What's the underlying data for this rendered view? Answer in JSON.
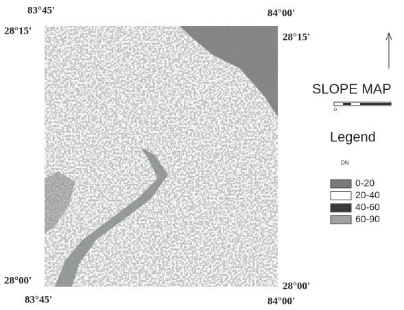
{
  "map": {
    "title": "SLOPE MAP",
    "corner_labels": {
      "top_left_lon": "83°45'",
      "top_left_lat": "28°15'",
      "top_right_lon": "84°00'",
      "top_right_lat": "28°15'",
      "bottom_left_lat": "28°00'",
      "bottom_left_lon": "83°45'",
      "bottom_right_lat": "28°00'",
      "bottom_right_lon": "84°00'"
    },
    "scale_start": "0",
    "legend": {
      "title": "Legend",
      "subtitle": "DN",
      "items": [
        {
          "label": "0-20",
          "color": "#7a7a7a"
        },
        {
          "label": "20-40",
          "color": "#ffffff"
        },
        {
          "label": "40-60",
          "color": "#3a3a3a"
        },
        {
          "label": "60-90",
          "color": "#a0a0a0"
        }
      ]
    }
  }
}
